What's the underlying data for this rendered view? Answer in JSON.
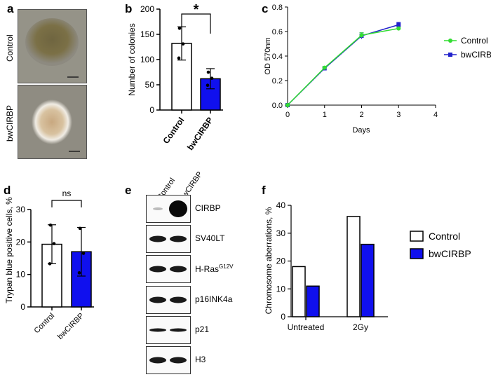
{
  "panels": {
    "a": "a",
    "b": "b",
    "c": "c",
    "d": "d",
    "e": "e",
    "f": "f"
  },
  "panel_a": {
    "row_labels": [
      "Control",
      "bwCIRBP"
    ]
  },
  "panel_e": {
    "column_labels": [
      "Control",
      "bwCIRBP"
    ],
    "bands": [
      {
        "name": "CIRBP",
        "sup": ""
      },
      {
        "name": "SV40LT",
        "sup": ""
      },
      {
        "name": "H-Ras",
        "sup": "G12V"
      },
      {
        "name": "p16INK4a",
        "sup": ""
      },
      {
        "name": "p21",
        "sup": ""
      },
      {
        "name": "H3",
        "sup": ""
      }
    ]
  },
  "colors": {
    "control": "#ffffff",
    "bwcirbp": "#1010ee",
    "line_control": "#33dd33",
    "line_bwcirbp": "#2222cc"
  },
  "chart_data": [
    {
      "id": "b",
      "type": "bar",
      "categories": [
        "Control",
        "bwCIRBP"
      ],
      "values": [
        132,
        62
      ],
      "errors": [
        33,
        20
      ],
      "points": [
        [
          162,
          131,
          103
        ],
        [
          75,
          63,
          49
        ]
      ],
      "ylabel": "Number of colonies",
      "ylim": [
        0,
        200
      ],
      "yticks": [
        0,
        50,
        100,
        150,
        200
      ],
      "significance": "*"
    },
    {
      "id": "c",
      "type": "line",
      "xlabel": "Days",
      "ylabel": "OD 570nm",
      "xlim": [
        0,
        4
      ],
      "ylim": [
        0,
        0.8
      ],
      "xticks": [
        0,
        1,
        2,
        3,
        4
      ],
      "yticks": [
        "0.0",
        "0.2",
        "0.4",
        "0.6",
        "0.8"
      ],
      "x": [
        0,
        1,
        2,
        3
      ],
      "series": [
        {
          "name": "Control",
          "values": [
            0.0,
            0.305,
            0.57,
            0.625
          ],
          "errors": [
            0,
            0.01,
            0.02,
            0.01
          ]
        },
        {
          "name": "bwCIRBP",
          "values": [
            0.0,
            0.3,
            0.565,
            0.655
          ],
          "errors": [
            0,
            0.01,
            0.025,
            0.02
          ]
        }
      ],
      "legend": "right"
    },
    {
      "id": "d",
      "type": "bar",
      "categories": [
        "Control",
        "bwCIRBP"
      ],
      "values": [
        19.3,
        17.0
      ],
      "errors": [
        6.0,
        7.5
      ],
      "points": [
        [
          25.2,
          19.5,
          13.3
        ],
        [
          24.2,
          16.5,
          10.5
        ]
      ],
      "ylabel": "Trypan blue positive cells, %",
      "ylim": [
        0,
        30
      ],
      "yticks": [
        0,
        10,
        20,
        30
      ],
      "significance": "ns"
    },
    {
      "id": "f",
      "type": "bar",
      "categories": [
        "Untreated",
        "2Gy"
      ],
      "series": [
        {
          "name": "Control",
          "values": [
            18,
            36
          ]
        },
        {
          "name": "bwCIRBP",
          "values": [
            11,
            26
          ]
        }
      ],
      "ylabel": "Chromosome aberrations, %",
      "ylim": [
        0,
        40
      ],
      "yticks": [
        0,
        10,
        20,
        30,
        40
      ],
      "legend": "right"
    }
  ]
}
